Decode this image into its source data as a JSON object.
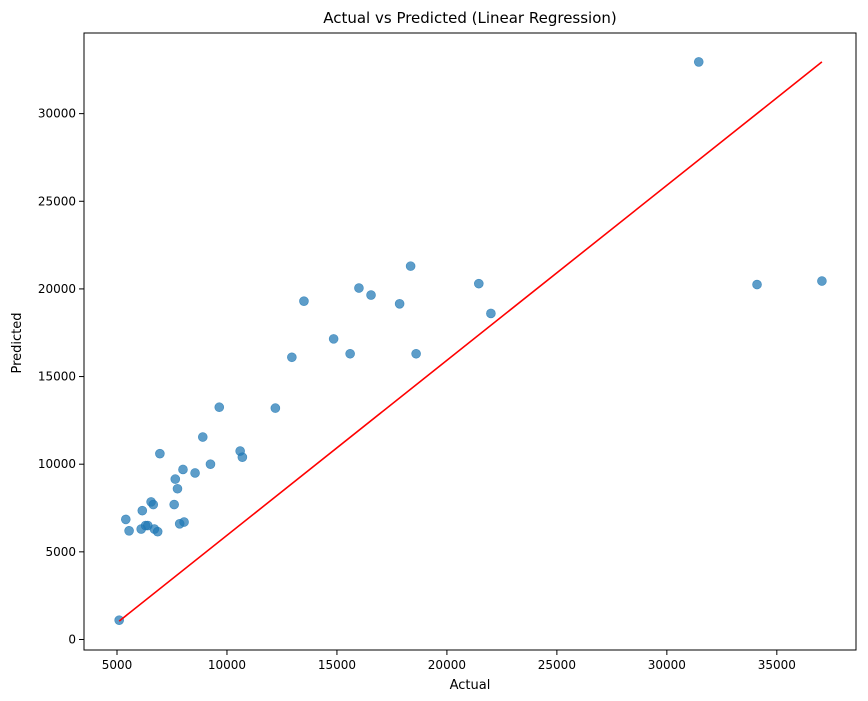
{
  "chart_data": {
    "type": "scatter",
    "title": "Actual vs Predicted (Linear Regression)",
    "xlabel": "Actual",
    "ylabel": "Predicted",
    "xlim": [
      3500,
      38600
    ],
    "ylim": [
      -600,
      34600
    ],
    "xticks": [
      5000,
      10000,
      15000,
      20000,
      25000,
      30000,
      35000
    ],
    "yticks": [
      0,
      5000,
      10000,
      15000,
      20000,
      25000,
      30000
    ],
    "grid": false,
    "colors": {
      "points": "#1f77b4",
      "line": "#ff0000",
      "axis": "#000000"
    },
    "points": [
      {
        "x": 5100,
        "y": 1100
      },
      {
        "x": 5400,
        "y": 6850
      },
      {
        "x": 5550,
        "y": 6200
      },
      {
        "x": 6100,
        "y": 6300
      },
      {
        "x": 6150,
        "y": 7350
      },
      {
        "x": 6300,
        "y": 6500
      },
      {
        "x": 6400,
        "y": 6500
      },
      {
        "x": 6550,
        "y": 7850
      },
      {
        "x": 6650,
        "y": 7700
      },
      {
        "x": 6700,
        "y": 6300
      },
      {
        "x": 6850,
        "y": 6150
      },
      {
        "x": 6950,
        "y": 10600
      },
      {
        "x": 7600,
        "y": 7700
      },
      {
        "x": 7650,
        "y": 9150
      },
      {
        "x": 7750,
        "y": 8600
      },
      {
        "x": 7850,
        "y": 6600
      },
      {
        "x": 8000,
        "y": 9700
      },
      {
        "x": 8050,
        "y": 6700
      },
      {
        "x": 8550,
        "y": 9500
      },
      {
        "x": 8900,
        "y": 11550
      },
      {
        "x": 9250,
        "y": 10000
      },
      {
        "x": 9650,
        "y": 13250
      },
      {
        "x": 10600,
        "y": 10750
      },
      {
        "x": 10700,
        "y": 10400
      },
      {
        "x": 12200,
        "y": 13200
      },
      {
        "x": 12950,
        "y": 16100
      },
      {
        "x": 13500,
        "y": 19300
      },
      {
        "x": 14850,
        "y": 17150
      },
      {
        "x": 15600,
        "y": 16300
      },
      {
        "x": 16000,
        "y": 20050
      },
      {
        "x": 16550,
        "y": 19650
      },
      {
        "x": 17850,
        "y": 19150
      },
      {
        "x": 18350,
        "y": 21300
      },
      {
        "x": 18600,
        "y": 16300
      },
      {
        "x": 21450,
        "y": 20300
      },
      {
        "x": 22000,
        "y": 18600
      },
      {
        "x": 31450,
        "y": 32950
      },
      {
        "x": 34100,
        "y": 20250
      },
      {
        "x": 37050,
        "y": 20450
      }
    ],
    "line": {
      "from": [
        5100,
        1050
      ],
      "to": [
        37050,
        32950
      ]
    }
  }
}
